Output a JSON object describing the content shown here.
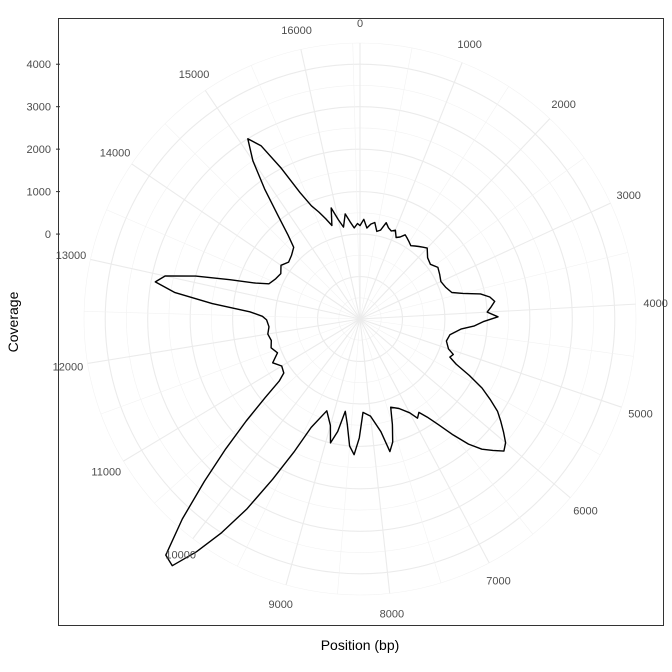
{
  "chart_data": {
    "type": "line",
    "coord": "polar",
    "xlabel": "Position (bp)",
    "ylabel": "Coverage",
    "x_ticks": [
      0,
      1000,
      2000,
      3000,
      4000,
      5000,
      6000,
      7000,
      8000,
      9000,
      10000,
      11000,
      12000,
      13000,
      14000,
      15000,
      16000
    ],
    "y_ticks": [
      0,
      1000,
      2000,
      3000,
      4000
    ],
    "xlim": [
      0,
      16569
    ],
    "ylim": [
      -2000,
      4500
    ],
    "grid": true,
    "legend": "none",
    "colors": {
      "line": "#000000",
      "grid_major": "#ebebeb",
      "grid_minor": "#f2f2f2",
      "panel_border": "#333333",
      "tick_text": "#4d4d4d"
    },
    "series": [
      {
        "x": [
          0,
          100,
          200,
          300,
          400,
          500,
          600,
          700,
          800,
          900,
          1000,
          1100,
          1200,
          1300,
          1400,
          1500,
          1600,
          1700,
          1800,
          1900,
          2000,
          2200,
          2400,
          2600,
          2800,
          3000,
          3200,
          3400,
          3500,
          3600,
          3700,
          3800,
          3900,
          4000,
          4100,
          4200,
          4300,
          4400,
          4600,
          4800,
          5000,
          5100,
          5200,
          5300,
          5400,
          5500,
          5600,
          5700,
          5800,
          5900,
          6000,
          6100,
          6200,
          6300,
          6400,
          6500,
          6600,
          6700,
          6800,
          6900,
          7000,
          7200,
          7400,
          7500,
          7600,
          7700,
          7800,
          8000,
          8200,
          8300,
          8400,
          8500,
          8600,
          8700,
          8800,
          8900,
          9000,
          9200,
          9400,
          9500,
          9600,
          9700,
          9800,
          9900,
          10000,
          10100,
          10200,
          10300,
          10400,
          10500,
          10600,
          10700,
          10800,
          11000,
          11200,
          11400,
          11600,
          11800,
          12000,
          12200,
          12400,
          12500,
          12600,
          12700,
          12800,
          12900,
          13000,
          13100,
          13200,
          13300,
          13400,
          13600,
          13800,
          14000,
          14200,
          14400,
          14600,
          14700,
          14800,
          14900,
          15000,
          15100,
          15200,
          15300,
          15400,
          15500,
          15600,
          15700,
          15800,
          15900,
          16000,
          16100,
          16200,
          16300,
          16400,
          16500,
          16569
        ],
        "y": [
          200,
          350,
          150,
          250,
          300,
          100,
          150,
          350,
          250,
          200,
          250,
          100,
          150,
          250,
          200,
          150,
          100,
          150,
          200,
          250,
          300,
          150,
          100,
          200,
          150,
          100,
          150,
          250,
          500,
          900,
          1100,
          1200,
          1100,
          1000,
          1250,
          900,
          700,
          400,
          150,
          100,
          200,
          350,
          300,
          500,
          900,
          1300,
          1600,
          1900,
          2100,
          2300,
          2500,
          2600,
          2400,
          2200,
          1900,
          1500,
          1100,
          800,
          600,
          700,
          500,
          300,
          200,
          600,
          1000,
          1200,
          700,
          300,
          200,
          800,
          1200,
          1000,
          500,
          200,
          700,
          1000,
          600,
          300,
          800,
          1500,
          2300,
          3200,
          4000,
          4700,
          5300,
          5200,
          4300,
          3300,
          2400,
          1600,
          900,
          400,
          200,
          150,
          300,
          100,
          200,
          150,
          200,
          150,
          200,
          300,
          600,
          1500,
          2400,
          2900,
          2700,
          2000,
          1200,
          600,
          300,
          200,
          150,
          250,
          150,
          200,
          300,
          600,
          1100,
          1800,
          2500,
          3000,
          2700,
          2000,
          1300,
          900,
          700,
          500,
          300,
          700,
          400,
          200,
          500,
          300,
          150,
          250,
          200
        ]
      }
    ]
  }
}
